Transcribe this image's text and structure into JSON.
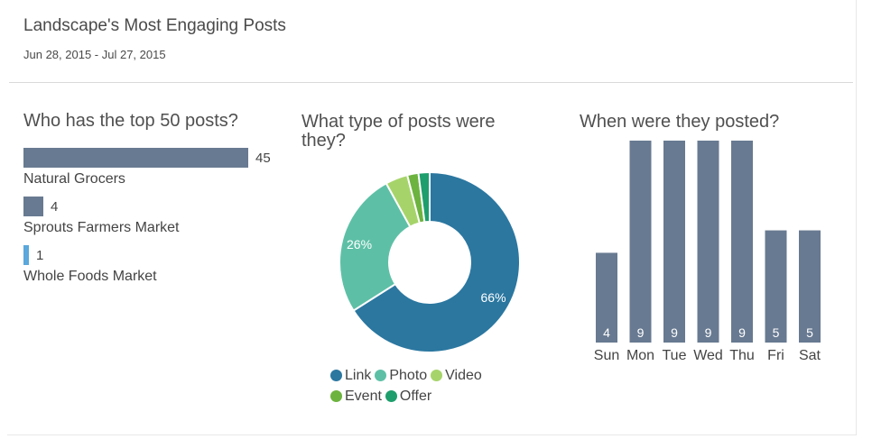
{
  "header": {
    "title": "Landscape's Most Engaging Posts",
    "date_range": "Jun 28, 2015 - Jul 27, 2015"
  },
  "sections": {
    "top_posts_title": "Who has the top 50 posts?",
    "post_types_title": "What type of posts were they?",
    "posted_when_title": "When were they posted?"
  },
  "colors": {
    "bar": "#687a91",
    "bar_highlight": "#5aa8dc",
    "link": "#2b77a0",
    "photo": "#5dc0a6",
    "video": "#a6d46a",
    "event": "#6db33f",
    "offer": "#1e9e6c"
  },
  "chart_data": [
    {
      "type": "bar",
      "orientation": "horizontal",
      "title": "Who has the top 50 posts?",
      "categories": [
        "Natural Grocers",
        "Sprouts Farmers Market",
        "Whole Foods Market"
      ],
      "values": [
        45,
        4,
        1
      ],
      "xlim": [
        0,
        45
      ]
    },
    {
      "type": "pie",
      "title": "What type of posts were they?",
      "donut": true,
      "labels": [
        "Link",
        "Photo",
        "Video",
        "Event",
        "Offer"
      ],
      "values": [
        66,
        26,
        4,
        2,
        2
      ],
      "data_labels": [
        "66%",
        "26%",
        "",
        "",
        ""
      ],
      "legend": "bottom"
    },
    {
      "type": "bar",
      "orientation": "vertical",
      "title": "When were they posted?",
      "categories": [
        "Sun",
        "Mon",
        "Tue",
        "Wed",
        "Thu",
        "Fri",
        "Sat"
      ],
      "values": [
        4,
        9,
        9,
        9,
        9,
        5,
        5
      ],
      "ylim": [
        0,
        9
      ]
    }
  ]
}
